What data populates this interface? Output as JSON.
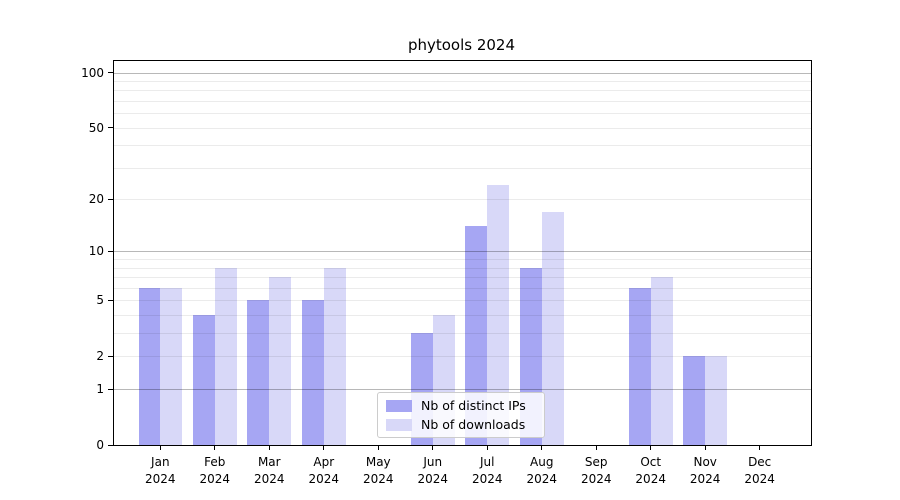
{
  "colors": {
    "bar_ips": "#a6a6f3",
    "bar_downloads": "#d8d8f8",
    "grid_minor": "rgba(0,0,0,0.08)",
    "grid_major": "rgba(0,0,0,0.28)",
    "axis": "#000000",
    "background": "#ffffff"
  },
  "chart_data": {
    "type": "bar",
    "title": "phytools 2024",
    "categories": [
      "Jan",
      "Feb",
      "Mar",
      "Apr",
      "May",
      "Jun",
      "Jul",
      "Aug",
      "Sep",
      "Oct",
      "Nov",
      "Dec"
    ],
    "year": "2024",
    "series": [
      {
        "name": "Nb of distinct IPs",
        "color": "#a6a6f3",
        "values": [
          6,
          4,
          5,
          5,
          0,
          3,
          14,
          8,
          0,
          6,
          2,
          0
        ]
      },
      {
        "name": "Nb of downloads",
        "color": "#d8d8f8",
        "values": [
          6,
          8,
          7,
          8,
          0,
          4,
          24,
          17,
          0,
          7,
          2,
          0
        ]
      }
    ],
    "xlabel": "",
    "ylabel": "",
    "yscale": "log1p",
    "ylim": [
      0,
      115
    ],
    "yticks": [
      0,
      1,
      2,
      5,
      10,
      20,
      50,
      100
    ],
    "major_gridlines": [
      1,
      10,
      100
    ],
    "minor_gridlines": [
      2,
      3,
      4,
      5,
      6,
      7,
      8,
      9,
      20,
      30,
      40,
      50,
      60,
      70,
      80,
      90
    ],
    "grid": "on",
    "legend_position": "lower-center"
  },
  "legend": {
    "items": [
      {
        "label": "Nb of distinct IPs"
      },
      {
        "label": "Nb of downloads"
      }
    ]
  }
}
